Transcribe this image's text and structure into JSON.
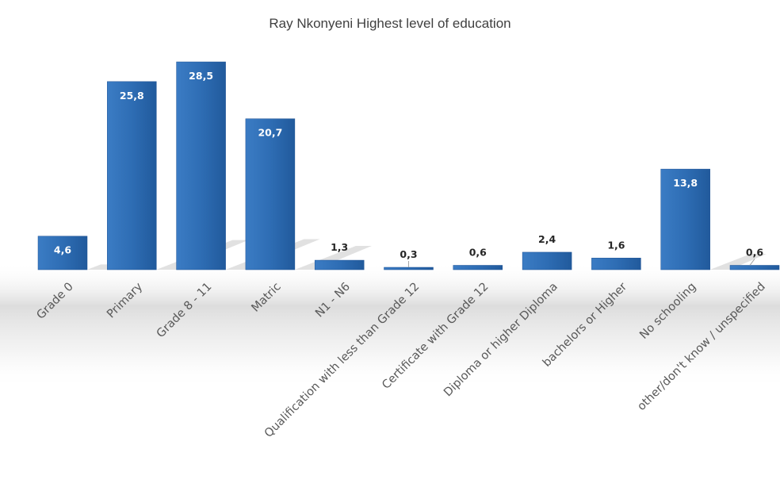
{
  "chart_data": {
    "type": "bar",
    "title": "Ray Nkonyeni Highest level of education",
    "xlabel": "",
    "ylabel": "",
    "categories": [
      "Grade 0",
      "Primary",
      "Grade 8 - 11",
      "Matric",
      "N1 - N6",
      "Qualification with less than Grade 12",
      "Certificate with Grade 12",
      "Diploma or higher Diploma",
      "bachelors or Higher",
      "No schooling",
      "other/don't know / unspecified"
    ],
    "values": [
      4.6,
      25.8,
      28.5,
      20.7,
      1.3,
      0.3,
      0.6,
      2.4,
      1.6,
      13.8,
      0.6
    ],
    "value_labels": [
      "4,6",
      "25,8",
      "28,5",
      "20,7",
      "1,3",
      "0,3",
      "0,6",
      "2,4",
      "1,6",
      "13,8",
      "0,6"
    ],
    "ylim": [
      0,
      28.5
    ],
    "grid": false,
    "legend": "none",
    "colors": {
      "bar": "#2e6db4",
      "bar_dark": "#1f5294",
      "label_inside": "#ffffff",
      "label_outside": "#262626"
    }
  }
}
